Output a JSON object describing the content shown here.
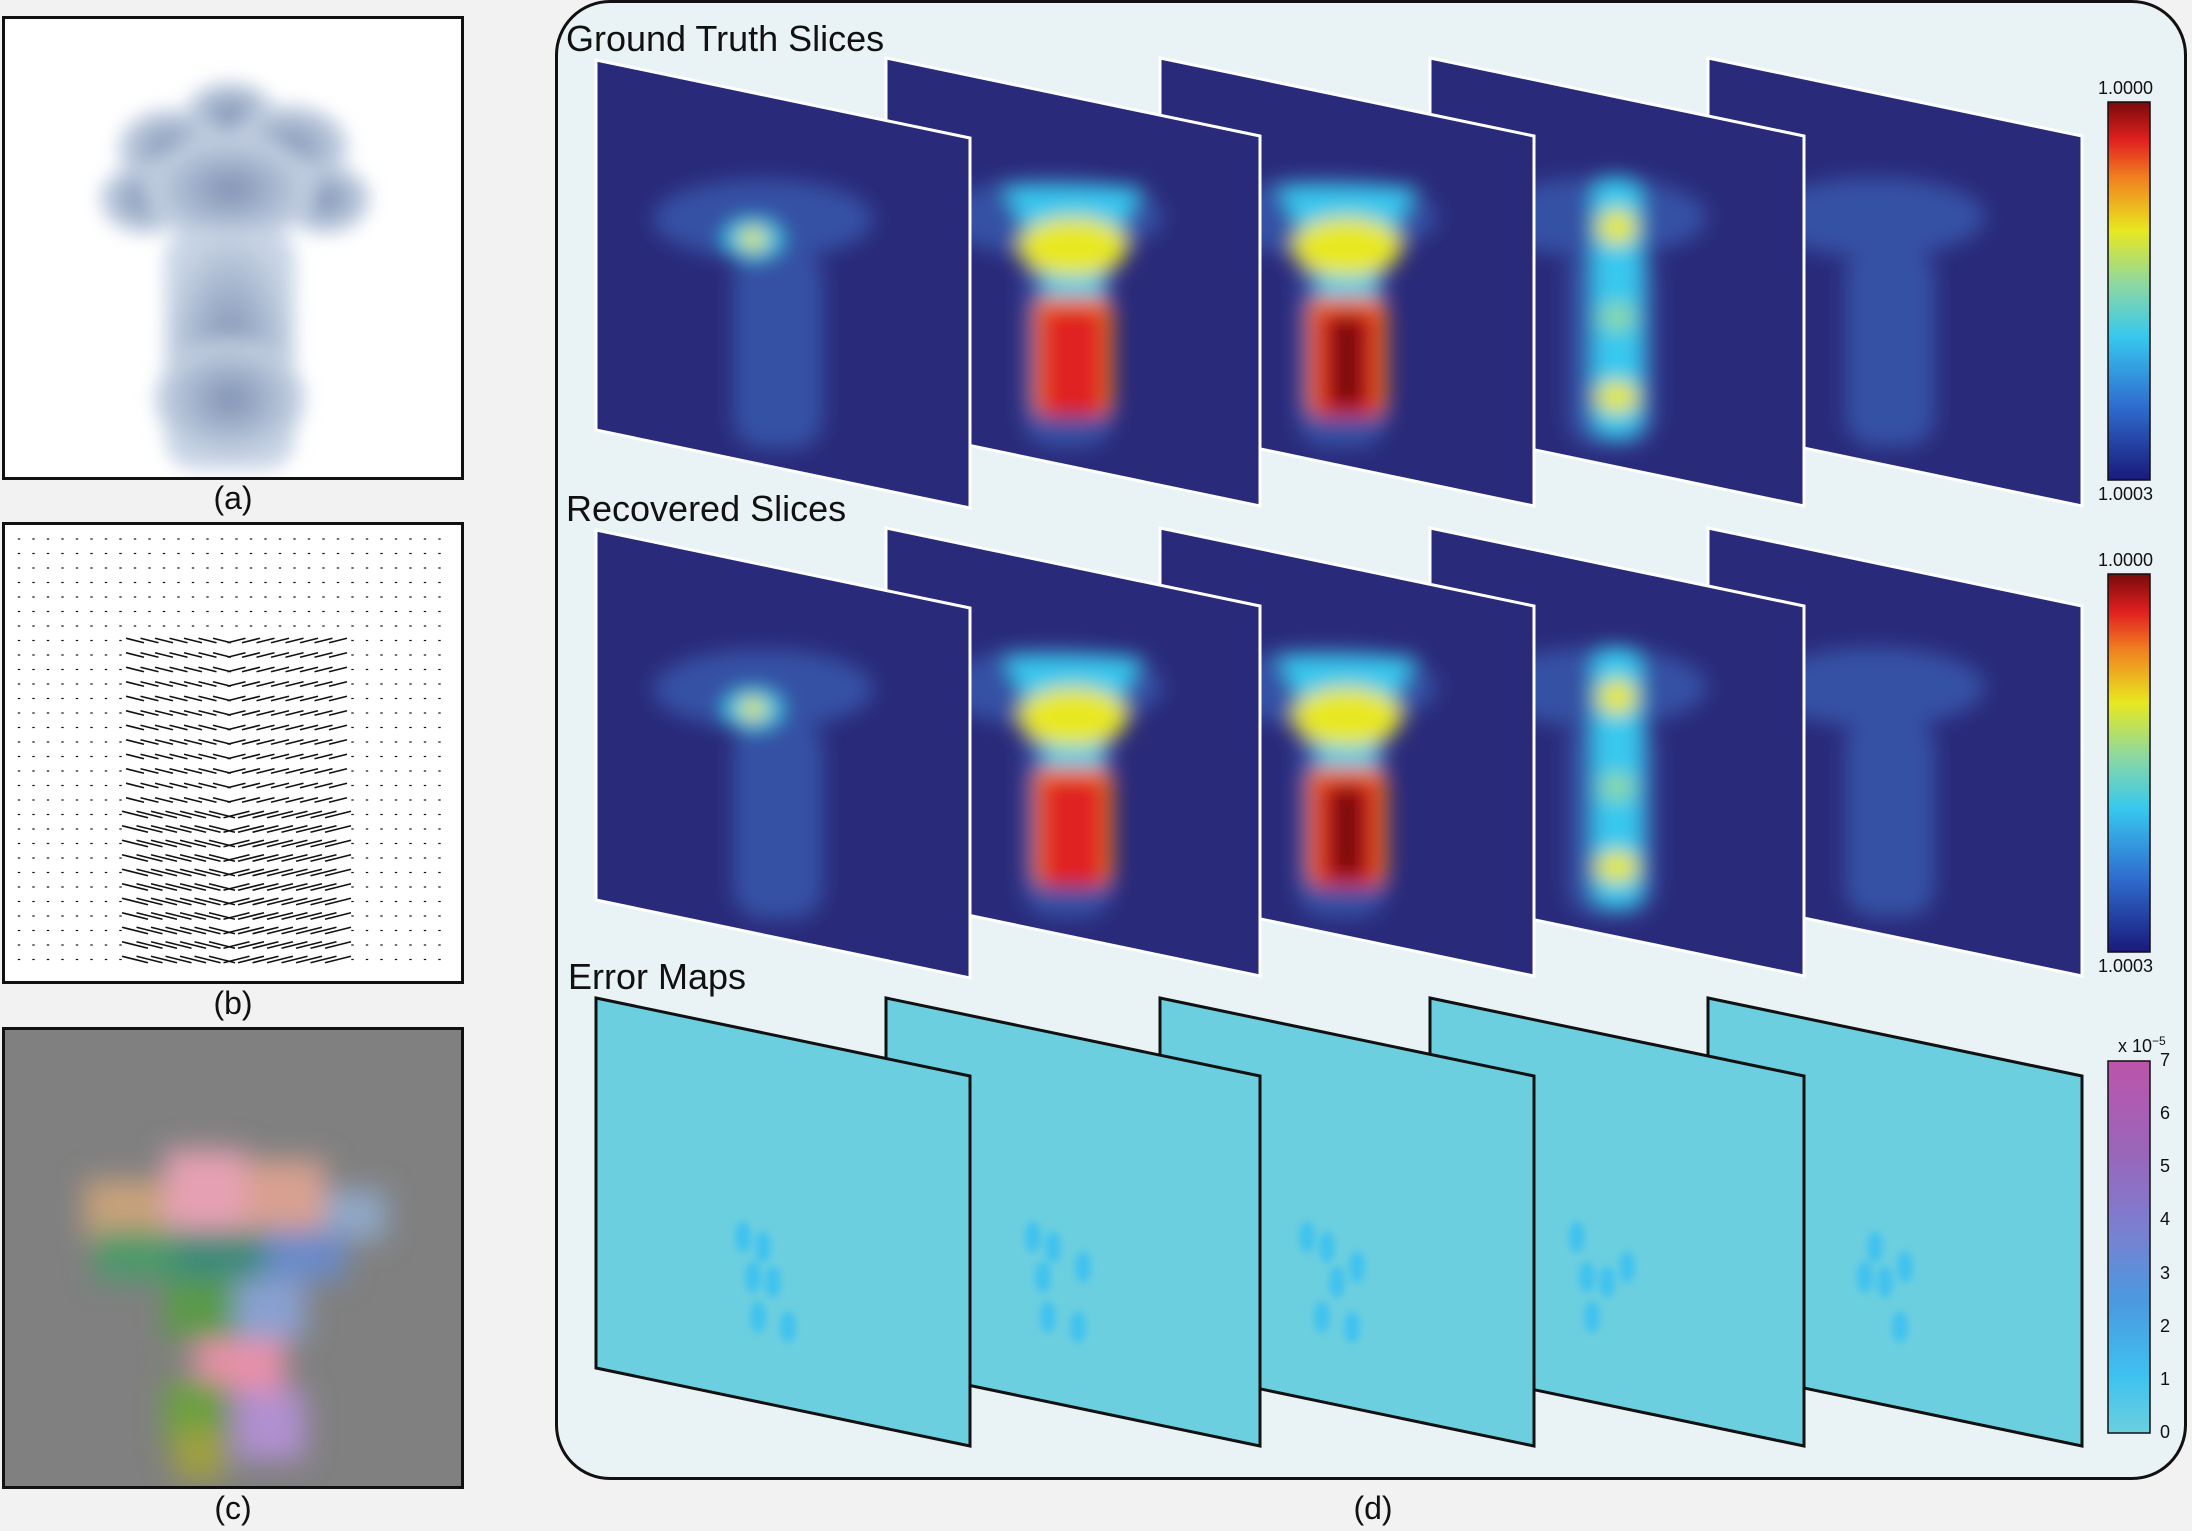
{
  "captions": {
    "a": "(a)",
    "b": "(b)",
    "c": "(c)",
    "d": "(d)"
  },
  "sections": {
    "ground_truth": "Ground Truth Slices",
    "recovered": "Recovered Slices",
    "error": "Error Maps"
  },
  "colorbars": {
    "ground_truth": {
      "max": "1.0000",
      "min": "1.0003"
    },
    "recovered": {
      "max": "1.0000",
      "min": "1.0003"
    },
    "error": {
      "scale": "x 10",
      "exponent": "−5",
      "ticks": [
        "7",
        "6",
        "5",
        "4",
        "3",
        "2",
        "1",
        "0"
      ]
    }
  },
  "colors": {
    "slice_background": "#2a2a7a",
    "error_background": "#6ccfdf",
    "panel_d_background": "#e9f2f5",
    "smoke_gray_background": "#808080"
  }
}
